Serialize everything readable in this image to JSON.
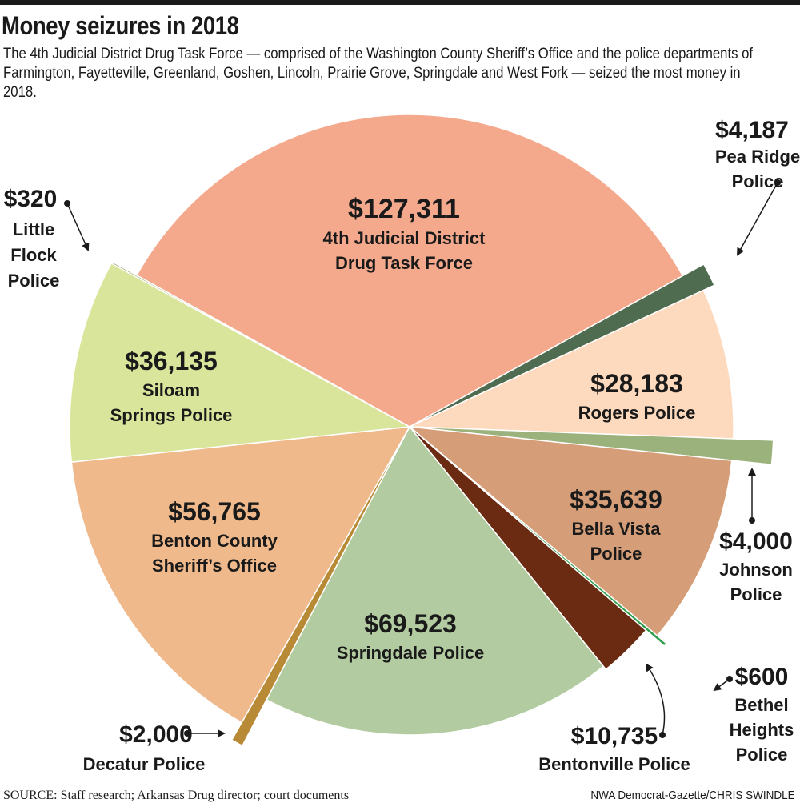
{
  "header": {
    "title": "Money seizures in 2018",
    "subtitle": "The 4th Judicial District Drug Task Force — comprised of the Washington County Sheriff’s Office and the police departments of Farmington, Fayetteville, Greenland, Goshen, Lincoln, Prairie Grove, Springdale and West Fork — seized the most money in 2018."
  },
  "footer": {
    "source": "SOURCE: Staff research; Arkansas Drug director; court documents",
    "credit": "NWA Democrat-Gazette/CHRIS SWINDLE"
  },
  "chart_data": {
    "type": "pie",
    "title": "Money seizures in 2018",
    "unit": "$",
    "slices": [
      {
        "name": "4th Judicial District Drug Task Force",
        "label_lines": [
          "4th Judicial District",
          "Drug Task Force"
        ],
        "value": 127311,
        "value_label": "$127,311",
        "color": "#f4a98d"
      },
      {
        "name": "Pea Ridge Police",
        "label_lines": [
          "Pea Ridge",
          "Police"
        ],
        "value": 4187,
        "value_label": "$4,187",
        "color": "#4f6b50"
      },
      {
        "name": "Rogers Police",
        "label_lines": [
          "Rogers Police"
        ],
        "value": 28183,
        "value_label": "$28,183",
        "color": "#fdd9be"
      },
      {
        "name": "Johnson Police",
        "label_lines": [
          "Johnson",
          "Police"
        ],
        "value": 4000,
        "value_label": "$4,000",
        "color": "#9bb27c"
      },
      {
        "name": "Bella Vista Police",
        "label_lines": [
          "Bella Vista",
          "Police"
        ],
        "value": 35639,
        "value_label": "$35,639",
        "color": "#d69e78"
      },
      {
        "name": "Bethel Heights Police",
        "label_lines": [
          "Bethel",
          "Heights",
          "Police"
        ],
        "value": 600,
        "value_label": "$600",
        "color": "#2e9e4a"
      },
      {
        "name": "Bentonville Police",
        "label_lines": [
          "Bentonville Police"
        ],
        "value": 10735,
        "value_label": "$10,735",
        "color": "#6b2a12"
      },
      {
        "name": "Springdale Police",
        "label_lines": [
          "Springdale Police"
        ],
        "value": 69523,
        "value_label": "$69,523",
        "color": "#b2cba0"
      },
      {
        "name": "Decatur Police",
        "label_lines": [
          "Decatur Police"
        ],
        "value": 2000,
        "value_label": "$2,000",
        "color": "#b98a35"
      },
      {
        "name": "Benton County Sheriff’s Office",
        "label_lines": [
          "Benton County",
          "Sheriff’s Office"
        ],
        "value": 56765,
        "value_label": "$56,765",
        "color": "#efb98c"
      },
      {
        "name": "Siloam Springs Police",
        "label_lines": [
          "Siloam",
          "Springs Police"
        ],
        "value": 36135,
        "value_label": "$36,135",
        "color": "#d9e59a"
      },
      {
        "name": "Little Flock Police",
        "label_lines": [
          "Little",
          "Flock",
          "Police"
        ],
        "value": 320,
        "value_label": "$320",
        "color": "#8ea866"
      }
    ]
  }
}
